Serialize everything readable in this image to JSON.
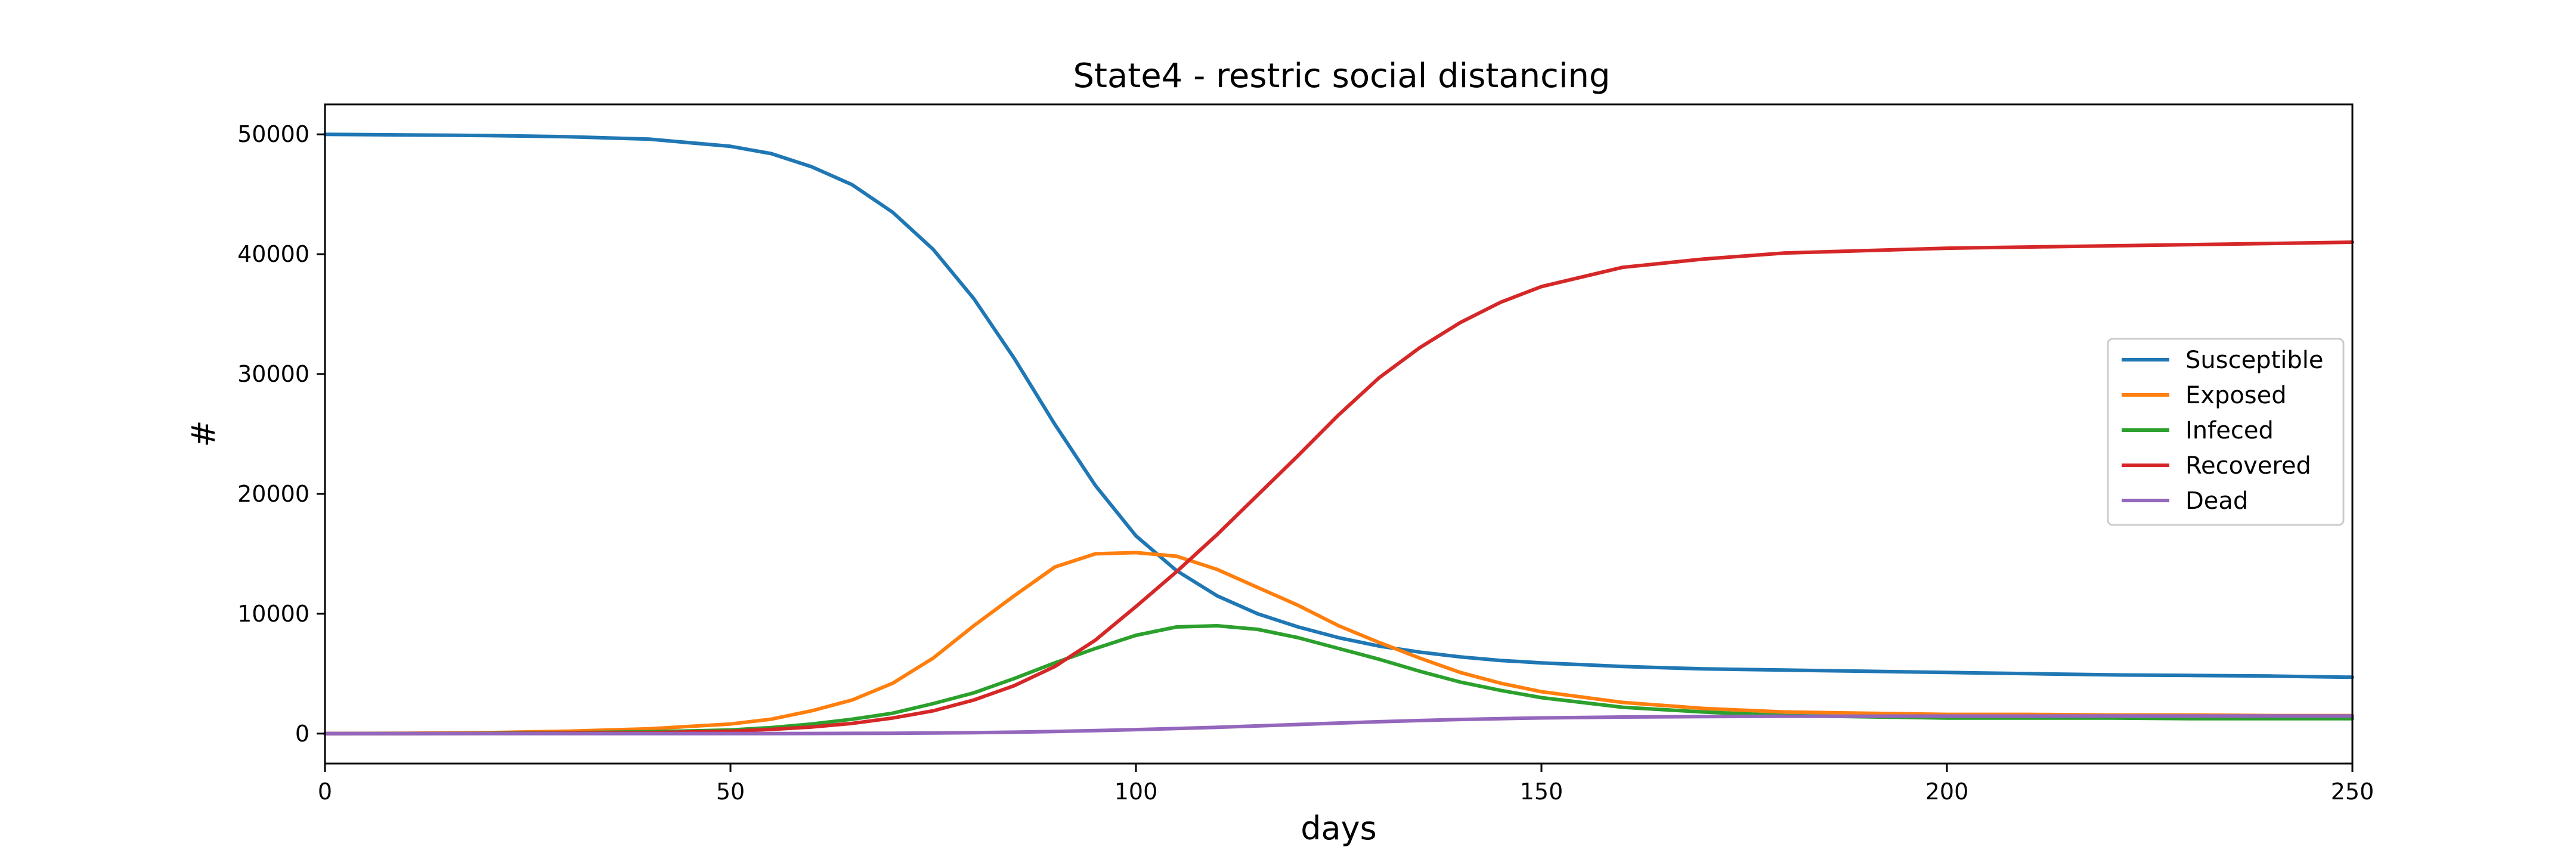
{
  "chart_data": {
    "type": "line",
    "title": "State4 - restric social distancing",
    "xlabel": "days",
    "ylabel": "#",
    "xlim": [
      0,
      250
    ],
    "ylim": [
      -2500,
      52500
    ],
    "xticks": [
      0,
      50,
      100,
      150,
      200,
      250
    ],
    "yticks": [
      0,
      10000,
      20000,
      30000,
      40000,
      50000
    ],
    "grid": false,
    "legend_position": "center-right",
    "x": [
      0,
      10,
      20,
      30,
      40,
      50,
      55,
      60,
      65,
      70,
      75,
      80,
      85,
      90,
      95,
      100,
      105,
      110,
      115,
      120,
      125,
      130,
      135,
      140,
      145,
      150,
      160,
      170,
      180,
      190,
      200,
      210,
      220,
      230,
      240,
      250
    ],
    "series": [
      {
        "name": "Susceptible",
        "color": "#1f77b4",
        "values": [
          50000,
          49950,
          49900,
          49800,
          49600,
          49000,
          48400,
          47300,
          45800,
          43500,
          40400,
          36300,
          31300,
          25800,
          20700,
          16500,
          13600,
          11500,
          10000,
          8900,
          8000,
          7300,
          6800,
          6400,
          6100,
          5900,
          5600,
          5400,
          5300,
          5200,
          5100,
          5000,
          4900,
          4850,
          4800,
          4700
        ]
      },
      {
        "name": "Exposed",
        "color": "#ff7f0e",
        "values": [
          0,
          30,
          80,
          200,
          400,
          800,
          1200,
          1900,
          2800,
          4200,
          6300,
          9000,
          11500,
          13900,
          15000,
          15100,
          14800,
          13700,
          12200,
          10700,
          9000,
          7600,
          6300,
          5100,
          4200,
          3500,
          2600,
          2100,
          1800,
          1700,
          1600,
          1600,
          1550,
          1550,
          1500,
          1500
        ]
      },
      {
        "name": "Infeced",
        "color": "#2ca02c",
        "values": [
          0,
          10,
          30,
          80,
          150,
          300,
          500,
          800,
          1200,
          1700,
          2500,
          3400,
          4600,
          5900,
          7100,
          8200,
          8900,
          9000,
          8700,
          8000,
          7100,
          6200,
          5200,
          4300,
          3600,
          3000,
          2200,
          1800,
          1500,
          1400,
          1300,
          1300,
          1300,
          1250,
          1250,
          1250
        ]
      },
      {
        "name": "Recovered",
        "color": "#d62728",
        "values": [
          0,
          5,
          15,
          40,
          80,
          200,
          350,
          550,
          850,
          1300,
          1900,
          2800,
          4000,
          5600,
          7800,
          10600,
          13500,
          16600,
          19900,
          23200,
          26600,
          29700,
          32200,
          34300,
          36000,
          37300,
          38900,
          39600,
          40100,
          40300,
          40500,
          40600,
          40700,
          40800,
          40900,
          41000
        ]
      },
      {
        "name": "Dead",
        "color": "#9467bd",
        "values": [
          0,
          0,
          0,
          0,
          0,
          0,
          0,
          10,
          20,
          30,
          50,
          80,
          120,
          180,
          250,
          330,
          420,
          520,
          640,
          760,
          880,
          990,
          1090,
          1180,
          1250,
          1310,
          1380,
          1420,
          1440,
          1450,
          1460,
          1460,
          1470,
          1470,
          1470,
          1470
        ]
      }
    ]
  }
}
